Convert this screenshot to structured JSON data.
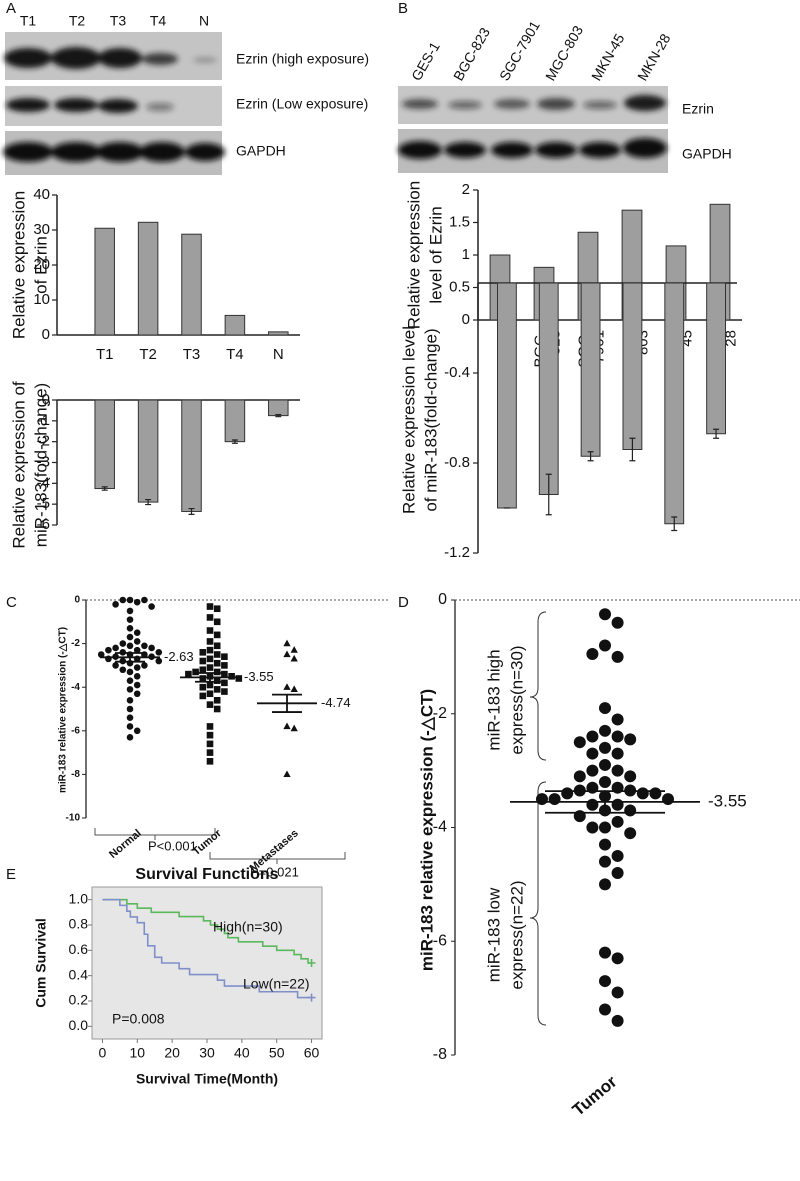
{
  "panel_labels": [
    "A",
    "B",
    "C",
    "D",
    "E"
  ],
  "blots": {
    "A": {
      "lanes": [
        "T1",
        "T2",
        "T3",
        "T4",
        "N"
      ],
      "rows": [
        "Ezrin (high exposure)",
        "Ezrin (Low exposure)",
        "GAPDH"
      ]
    },
    "B": {
      "lanes": [
        "GES-1",
        "BGC-823",
        "SGC-7901",
        "MGC-803",
        "MKN-45",
        "MKN-28"
      ],
      "rows": [
        "Ezrin",
        "GAPDH"
      ]
    }
  },
  "chart_data": [
    {
      "type": "bar",
      "ylabel": [
        "Relative expression",
        "of Ezrin"
      ],
      "categories": [
        "T1",
        "T2",
        "T3",
        "T4",
        "N"
      ],
      "values": [
        30.5,
        32.2,
        28.8,
        5.6,
        0.9
      ],
      "color": "#9e9e9e",
      "ylim": [
        0,
        40
      ],
      "yticks": [
        0,
        10,
        20,
        30,
        40
      ]
    },
    {
      "type": "bar",
      "ylabel": [
        "Relative expression of",
        "miR-183(fold-change)"
      ],
      "values": [
        -4.25,
        -4.9,
        -5.35,
        -2.0,
        -0.75
      ],
      "errors": [
        0.08,
        0.12,
        0.14,
        0.08,
        0.05
      ],
      "color": "#9e9e9e",
      "ylim": [
        -6,
        0
      ],
      "yticks": [
        0,
        -1,
        -2,
        -3,
        -4,
        -5,
        -6
      ]
    },
    {
      "type": "bar",
      "ylabel": [
        "Relative expression",
        "level of Ezrin"
      ],
      "categories": [
        [
          "GES-1"
        ],
        [
          "BGC-",
          "823"
        ],
        [
          "SGC-",
          "7901"
        ],
        [
          "MGC-",
          "803"
        ],
        [
          "MKN-",
          "45"
        ],
        [
          "MKN-",
          "28"
        ]
      ],
      "values": [
        1.0,
        0.81,
        1.35,
        1.69,
        1.14,
        1.78
      ],
      "color": "#9e9e9e",
      "ylim": [
        0,
        2
      ],
      "yticks": [
        0,
        0.5,
        1,
        1.5,
        2
      ]
    },
    {
      "type": "bar",
      "ylabel": [
        "Relative expression level",
        "of miR-183(fold-change)"
      ],
      "values": [
        -1.0,
        -0.94,
        -0.77,
        -0.74,
        -1.07,
        -0.67
      ],
      "errors": [
        0.0,
        0.09,
        0.02,
        0.05,
        0.03,
        0.02
      ],
      "color": "#9e9e9e",
      "ylim": [
        -1.2,
        0
      ],
      "yticks": [
        -0.4,
        -0.8,
        -1.2
      ]
    },
    {
      "type": "dotplot",
      "ylabel": "miR-183 relative expression (-△CT)",
      "ylim": [
        -10,
        0
      ],
      "yticks": [
        0,
        -2,
        -4,
        -6,
        -8,
        -10
      ],
      "groups": [
        {
          "name": "Normal",
          "marker": "circle",
          "mean": -2.63,
          "error": 0.2,
          "values": [
            0,
            0,
            0,
            -0.1,
            -0.2,
            -0.3,
            -0.5,
            -0.9,
            -1.3,
            -1.5,
            -1.7,
            -1.9,
            -2.0,
            -2.1,
            -2.1,
            -2.2,
            -2.2,
            -2.3,
            -2.3,
            -2.4,
            -2.4,
            -2.5,
            -2.5,
            -2.5,
            -2.6,
            -2.6,
            -2.7,
            -2.7,
            -2.8,
            -2.8,
            -2.9,
            -3.0,
            -3.0,
            -3.1,
            -3.2,
            -3.3,
            -3.5,
            -3.7,
            -3.9,
            -4.1,
            -4.3,
            -4.6,
            -5.0,
            -5.4,
            -5.8,
            -6.0,
            -6.3
          ]
        },
        {
          "name": "Tumor",
          "marker": "square",
          "mean": -3.55,
          "error": 0.2,
          "values": [
            -0.3,
            -0.4,
            -0.8,
            -1.0,
            -1.4,
            -1.6,
            -1.9,
            -2.1,
            -2.3,
            -2.4,
            -2.5,
            -2.6,
            -2.7,
            -2.8,
            -2.9,
            -3.0,
            -3.1,
            -3.2,
            -3.3,
            -3.3,
            -3.4,
            -3.4,
            -3.5,
            -3.5,
            -3.6,
            -3.6,
            -3.7,
            -3.8,
            -3.9,
            -4.0,
            -4.1,
            -4.2,
            -4.3,
            -4.4,
            -4.6,
            -4.8,
            -5.0,
            -5.8,
            -6.2,
            -6.6,
            -7.0,
            -7.4
          ]
        },
        {
          "name": "Metastases",
          "marker": "triangle",
          "mean": -4.74,
          "error": 0.4,
          "values": [
            -2.0,
            -2.3,
            -2.5,
            -2.7,
            -4.0,
            -4.1,
            -5.8,
            -5.9,
            -8.0
          ]
        }
      ],
      "annotations": [
        "P<0.001",
        "P=0.021"
      ]
    },
    {
      "type": "dotplot",
      "ylabel": "miR-183 relative expression (-△CT)",
      "ylim": [
        -8,
        0
      ],
      "yticks": [
        0,
        -2,
        -4,
        -6,
        -8
      ],
      "groups": [
        {
          "name": "Tumor",
          "marker": "circle",
          "mean": -3.55,
          "error": 0.19,
          "values": [
            -0.25,
            -0.4,
            -0.8,
            -1.0,
            -0.95,
            -1.9,
            -2.1,
            -2.3,
            -2.4,
            -2.4,
            -2.45,
            -2.5,
            -2.6,
            -2.7,
            -2.7,
            -2.9,
            -3.0,
            -3.0,
            -3.1,
            -3.1,
            -3.2,
            -3.3,
            -3.3,
            -3.35,
            -3.35,
            -3.4,
            -3.4,
            -3.4,
            -3.45,
            -3.5,
            -3.5,
            -3.5,
            -3.6,
            -3.6,
            -3.7,
            -3.7,
            -3.8,
            -3.9,
            -4.0,
            -4.0,
            -4.1,
            -4.3,
            -4.5,
            -4.6,
            -4.8,
            -5.0,
            -6.2,
            -6.3,
            -6.7,
            -6.9,
            -7.2,
            -7.4
          ]
        }
      ],
      "annotations": [
        [
          "miR-183 high",
          "express(n=30)"
        ],
        [
          "miR-183 low",
          "express(n=22)"
        ]
      ]
    },
    {
      "type": "survival",
      "title": "Survival Functions",
      "xlabel": "Survival Time(Month)",
      "ylabel": "Cum Survival",
      "xlim": [
        -3,
        63
      ],
      "xticks": [
        0,
        10,
        20,
        30,
        40,
        50,
        60
      ],
      "ylim": [
        -0.1,
        1.1
      ],
      "yticks": [
        {
          "value": 0,
          "label": "0.0"
        },
        0.2,
        0.4,
        0.6,
        0.8,
        {
          "value": 1,
          "label": "1.0"
        }
      ],
      "background": "#e6e6e6",
      "series": [
        {
          "name": "High(n=30)",
          "color": "#5cb85c",
          "x": [
            0,
            7,
            7,
            10,
            10,
            14,
            14,
            22,
            22,
            29,
            29,
            31,
            31,
            33,
            33,
            35,
            35,
            36,
            36,
            39,
            39,
            46,
            46,
            50,
            50,
            55,
            55,
            57,
            57,
            59,
            59,
            60
          ],
          "values": [
            1,
            1,
            0.967,
            0.967,
            0.933,
            0.933,
            0.9,
            0.9,
            0.867,
            0.867,
            0.833,
            0.833,
            0.8,
            0.8,
            0.767,
            0.767,
            0.733,
            0.733,
            0.7,
            0.7,
            0.667,
            0.667,
            0.633,
            0.633,
            0.6,
            0.6,
            0.567,
            0.567,
            0.533,
            0.533,
            0.5,
            0.5
          ]
        },
        {
          "name": "Low(n=22)",
          "color": "#7f8fc9",
          "x": [
            0,
            5,
            5,
            7,
            7,
            8,
            8,
            10,
            10,
            12,
            12,
            13,
            13,
            15,
            15,
            17,
            17,
            22,
            22,
            25,
            25,
            33,
            33,
            35,
            35,
            45,
            45,
            56,
            56,
            60
          ],
          "values": [
            1,
            1,
            0.955,
            0.955,
            0.909,
            0.909,
            0.864,
            0.864,
            0.818,
            0.818,
            0.727,
            0.727,
            0.636,
            0.636,
            0.545,
            0.545,
            0.5,
            0.5,
            0.455,
            0.455,
            0.409,
            0.409,
            0.364,
            0.364,
            0.318,
            0.318,
            0.273,
            0.273,
            0.227,
            0.227
          ]
        }
      ],
      "annotations": [
        "P=0.008"
      ]
    }
  ]
}
